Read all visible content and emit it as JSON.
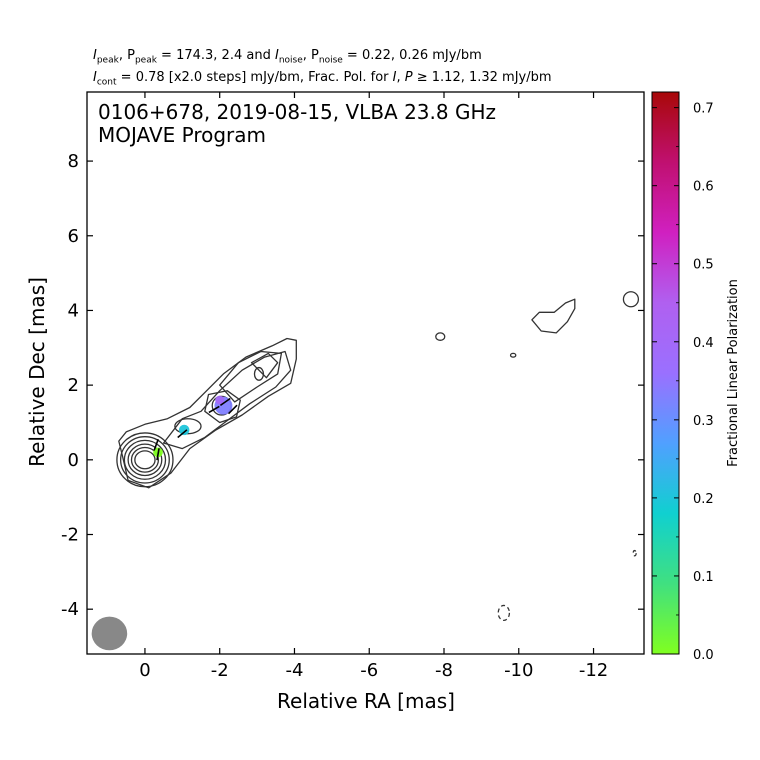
{
  "header": {
    "line1": {
      "a1": "I",
      "s1": "peak",
      "a2": ", P",
      "s2": "peak",
      "a3": " = 174.3, 2.4 and ",
      "a4": "I",
      "s4": "noise",
      "a5": ", P",
      "s5": "noise",
      "a6": " = 0.22, 0.26 mJy/bm"
    },
    "line2": {
      "a1": "I",
      "s1": "cont",
      "a2": " = 0.78 [x2.0 steps] mJy/bm, Frac. Pol. for ",
      "a3": "I",
      "a4": ", ",
      "a5": "P",
      "a6": " ≥  1.12, 1.32 mJy/bm"
    }
  },
  "chart_data": {
    "type": "contour",
    "title_line1": "0106+678, 2019-08-15, VLBA 23.8 GHz",
    "title_line2": "MOJAVE Program",
    "xlabel": "Relative RA [mas]",
    "ylabel": "Relative Dec [mas]",
    "xlim": [
      1.55,
      -13.35
    ],
    "ylim": [
      -5.2,
      9.85
    ],
    "xticks": [
      0,
      -2,
      -4,
      -6,
      -8,
      -10,
      -12
    ],
    "xtick_labels": [
      "0",
      "-2",
      "-4",
      "-6",
      "-8",
      "-10",
      "-12"
    ],
    "yticks": [
      -4,
      -2,
      0,
      2,
      4,
      6,
      8
    ],
    "ytick_labels": [
      "-4",
      "-2",
      "0",
      "2",
      "4",
      "6",
      "8"
    ],
    "colorbar": {
      "label": "Fractional Linear Polarization",
      "range": [
        0.0,
        0.72
      ],
      "ticks": [
        0.0,
        0.1,
        0.2,
        0.3,
        0.4,
        0.5,
        0.6,
        0.7
      ],
      "tick_labels": [
        "0.0",
        "0.1",
        "0.2",
        "0.3",
        "0.4",
        "0.5",
        "0.6",
        "0.7"
      ],
      "colors": [
        "#80ff20",
        "#40e080",
        "#10d0d0",
        "#50a0ff",
        "#9a70ff",
        "#b060f0",
        "#d020c0",
        "#c01070",
        "#a80808"
      ]
    },
    "beam": {
      "x": 0.95,
      "y": -4.65,
      "major_mas": 0.95,
      "minor_mas": 0.9
    },
    "contour_levels_mjy": [
      0.78,
      1.56,
      3.12,
      6.24,
      12.48,
      24.96,
      49.92,
      99.84
    ],
    "contours": {
      "core": [
        {
          "x": 0,
          "y": 0,
          "rx": 0.75,
          "ry": 0.72
        },
        {
          "x": 0,
          "y": 0,
          "rx": 0.65,
          "ry": 0.62
        },
        {
          "x": 0,
          "y": 0,
          "rx": 0.55,
          "ry": 0.52
        },
        {
          "x": 0,
          "y": 0,
          "rx": 0.45,
          "ry": 0.42
        },
        {
          "x": 0,
          "y": 0,
          "rx": 0.36,
          "ry": 0.33
        },
        {
          "x": 0,
          "y": 0,
          "rx": 0.27,
          "ry": 0.24
        }
      ],
      "jet_outer": [
        [
          0.6,
          0.1
        ],
        [
          0.7,
          0.5
        ],
        [
          0.5,
          0.75
        ],
        [
          0,
          0.95
        ],
        [
          -0.6,
          1.1
        ],
        [
          -1.2,
          1.4
        ],
        [
          -1.6,
          1.8
        ],
        [
          -2.1,
          2.3
        ],
        [
          -2.7,
          2.75
        ],
        [
          -3.4,
          3.05
        ],
        [
          -3.8,
          3.25
        ],
        [
          -4.05,
          3.2
        ],
        [
          -4.05,
          2.7
        ],
        [
          -3.9,
          2.05
        ],
        [
          -3.3,
          1.7
        ],
        [
          -2.6,
          1.2
        ],
        [
          -1.9,
          0.8
        ],
        [
          -1.2,
          0.3
        ],
        [
          -0.7,
          -0.35
        ],
        [
          -0.1,
          -0.75
        ],
        [
          0.45,
          -0.55
        ],
        [
          0.6,
          0.1
        ]
      ],
      "jet_mid": [
        [
          -0.5,
          0.45
        ],
        [
          -1.0,
          1.1
        ],
        [
          -1.5,
          1.3
        ],
        [
          -2.0,
          1.85
        ],
        [
          -2.6,
          2.4
        ],
        [
          -3.2,
          2.75
        ],
        [
          -3.75,
          2.9
        ],
        [
          -3.9,
          2.4
        ],
        [
          -3.5,
          1.95
        ],
        [
          -2.8,
          1.5
        ],
        [
          -2.2,
          1.05
        ],
        [
          -1.6,
          0.6
        ],
        [
          -1.0,
          0.3
        ],
        [
          -0.5,
          0.45
        ]
      ],
      "knot_outer": [
        [
          -2.0,
          2.0
        ],
        [
          -2.5,
          2.6
        ],
        [
          -3.1,
          2.9
        ],
        [
          -3.65,
          2.85
        ],
        [
          -3.55,
          2.3
        ],
        [
          -3.0,
          1.95
        ],
        [
          -2.4,
          1.55
        ],
        [
          -2.0,
          2.0
        ]
      ],
      "knot_mid": [
        [
          -2.85,
          2.6
        ],
        [
          -3.3,
          2.85
        ],
        [
          -3.55,
          2.6
        ],
        [
          -3.25,
          2.2
        ],
        [
          -2.85,
          2.6
        ]
      ],
      "knot2_outer": [
        [
          -1.6,
          1.3
        ],
        [
          -1.7,
          1.75
        ],
        [
          -2.2,
          1.85
        ],
        [
          -2.55,
          1.6
        ],
        [
          -2.45,
          1.15
        ],
        [
          -2.0,
          1.0
        ],
        [
          -1.6,
          1.3
        ]
      ],
      "knot2_inner": [
        {
          "x": -2.05,
          "y": 1.45,
          "rx": 0.25,
          "ry": 0.25
        }
      ],
      "knot1_outer": [
        {
          "x": -1.15,
          "y": 0.9,
          "rx": 0.35,
          "ry": 0.2
        }
      ],
      "knot3_inner": [
        {
          "x": -3.05,
          "y": 2.3,
          "rx": 0.12,
          "ry": 0.17
        }
      ],
      "blob_west": [
        [
          -10.35,
          3.75
        ],
        [
          -10.6,
          3.45
        ],
        [
          -11.0,
          3.4
        ],
        [
          -11.3,
          3.7
        ],
        [
          -11.5,
          4.05
        ],
        [
          -11.5,
          4.3
        ],
        [
          -11.25,
          4.2
        ],
        [
          -10.95,
          3.95
        ],
        [
          -10.55,
          3.95
        ],
        [
          -10.35,
          3.75
        ]
      ],
      "blob_far": [
        {
          "x": -13.0,
          "y": 4.3,
          "rx": 0.2,
          "ry": 0.2
        }
      ],
      "blob_8": [
        {
          "x": -7.9,
          "y": 3.3,
          "rx": 0.12,
          "ry": 0.1
        }
      ],
      "blob_10": [
        {
          "x": -9.85,
          "y": 2.8,
          "rx": 0.07,
          "ry": 0.05
        }
      ],
      "neg_1": [
        {
          "x": -9.6,
          "y": -4.1,
          "rx": 0.15,
          "ry": 0.2
        }
      ],
      "neg_2": [
        {
          "x": -13.1,
          "y": -2.5,
          "rx": 0.04,
          "ry": 0.07
        }
      ]
    },
    "polarization_patches": [
      {
        "x": -0.35,
        "y": 0.2,
        "frac": 0.0,
        "size": 0.13
      },
      {
        "x": -1.05,
        "y": 0.8,
        "frac": 0.2,
        "size": 0.14
      },
      {
        "x": -2.1,
        "y": 1.45,
        "frac": 0.33,
        "size": 0.24
      },
      {
        "x": -2.0,
        "y": 1.6,
        "frac": 0.4,
        "size": 0.12
      }
    ],
    "evpa_ticks": [
      {
        "x": -0.3,
        "y": 0.4,
        "angle": 70
      },
      {
        "x": -0.35,
        "y": 0.15,
        "angle": 80
      },
      {
        "x": -1.0,
        "y": 0.7,
        "angle": 40
      },
      {
        "x": -1.85,
        "y": 1.35,
        "angle": 30
      },
      {
        "x": -2.15,
        "y": 1.55,
        "angle": 35
      },
      {
        "x": -2.35,
        "y": 1.35,
        "angle": 45
      }
    ]
  }
}
